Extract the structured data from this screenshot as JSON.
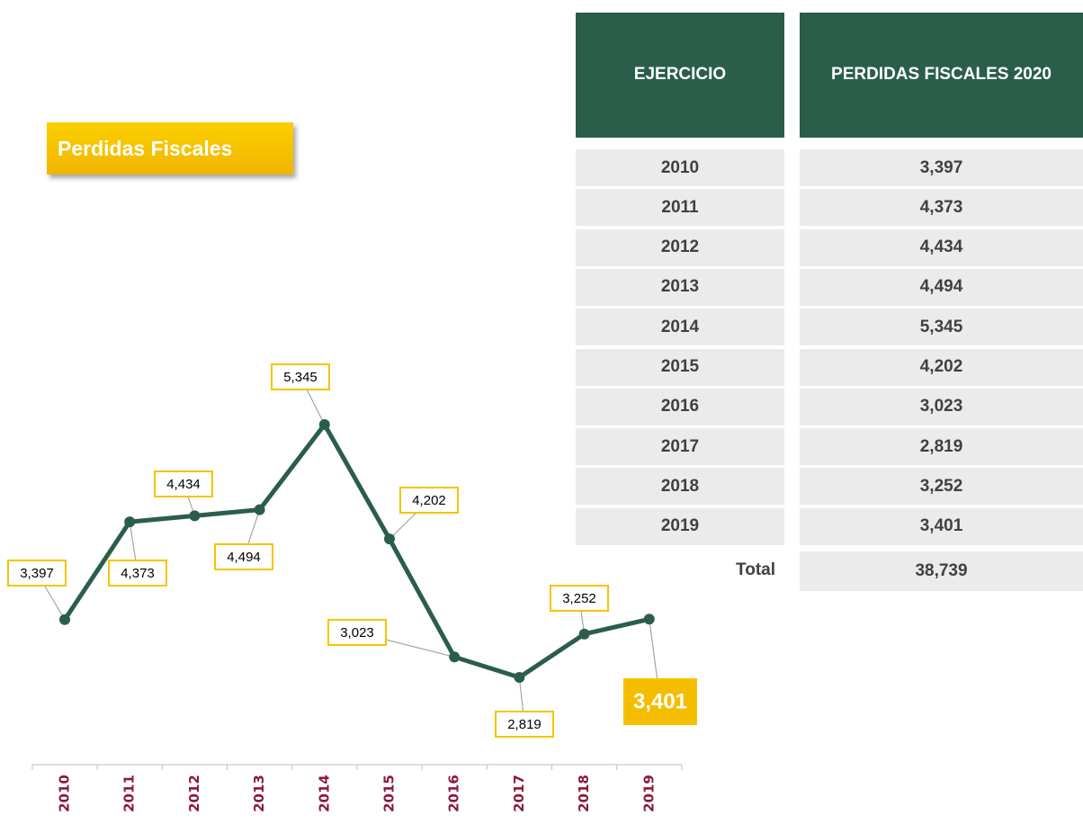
{
  "badge": "Perdidas Fiscales",
  "chart_data": {
    "type": "line",
    "categories": [
      "2010",
      "2011",
      "2012",
      "2013",
      "2014",
      "2015",
      "2016",
      "2017",
      "2018",
      "2019"
    ],
    "values": [
      3397,
      4373,
      4434,
      4494,
      5345,
      4202,
      3023,
      2819,
      3252,
      3401
    ],
    "value_labels": [
      "3,397",
      "4,373",
      "4,434",
      "4,494",
      "5,345",
      "4,202",
      "3,023",
      "2,819",
      "3,252",
      "3,401"
    ],
    "color": "#2b5e4a"
  },
  "table": {
    "headers": [
      "EJERCICIO",
      "PERDIDAS FISCALES 2020"
    ],
    "total_label": "Total",
    "total": "38,739"
  }
}
